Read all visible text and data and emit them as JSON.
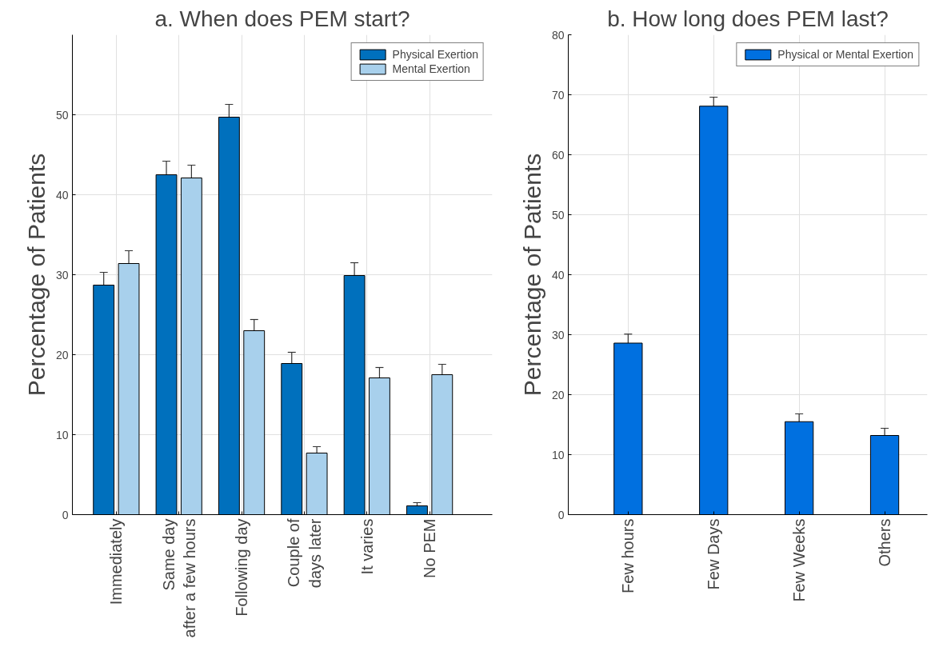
{
  "chart_data": [
    {
      "type": "bar",
      "title": "a. When does PEM start?",
      "ylabel": "Percentage of Patients",
      "categories": [
        "Immediately",
        "Same day\nafter a few hours",
        "Following day",
        "Couple of\ndays later",
        "It varies",
        "No PEM"
      ],
      "series": [
        {
          "name": "Physical Exertion",
          "color": "#0070bd",
          "values": [
            28.7,
            42.5,
            49.7,
            18.9,
            29.9,
            1.1
          ],
          "errors": [
            1.6,
            1.7,
            1.6,
            1.4,
            1.6,
            0.4
          ]
        },
        {
          "name": "Mental Exertion",
          "color": "#a8d0ec",
          "values": [
            31.4,
            42.1,
            23.0,
            7.7,
            17.1,
            17.5
          ],
          "errors": [
            1.6,
            1.6,
            1.4,
            0.8,
            1.3,
            1.3
          ]
        }
      ],
      "ylim": [
        0,
        60
      ],
      "yticks": [
        0,
        10,
        20,
        30,
        40,
        50
      ],
      "grid": true,
      "legend": "top right"
    },
    {
      "type": "bar",
      "title": "b. How long does PEM last?",
      "ylabel": "Percentage of Patients",
      "categories": [
        "Few hours",
        "Few Days",
        "Few Weeks",
        "Others"
      ],
      "series": [
        {
          "name": "Physical or Mental Exertion",
          "color": "#0070e0",
          "values": [
            28.6,
            68.1,
            15.5,
            13.2
          ],
          "errors": [
            1.5,
            1.5,
            1.3,
            1.2
          ]
        }
      ],
      "ylim": [
        0,
        80
      ],
      "yticks": [
        0,
        10,
        20,
        30,
        40,
        50,
        60,
        70,
        80
      ],
      "grid": true,
      "legend": "top right"
    }
  ]
}
